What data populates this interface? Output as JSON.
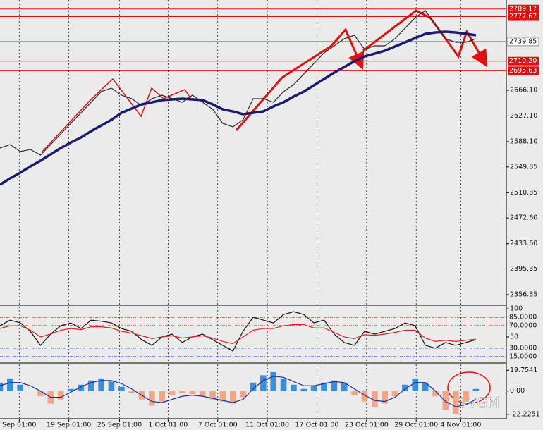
{
  "watermark": "TVGM",
  "chart_data": [
    {
      "type": "line",
      "xlim": [
        0,
        50
      ],
      "ylim": [
        2341.4,
        2802.8
      ],
      "yticks": [
        {
          "value": 2666.1,
          "label": "2666.10"
        },
        {
          "value": 2627.1,
          "label": "2627.10"
        },
        {
          "value": 2588.1,
          "label": "2588.10"
        },
        {
          "value": 2549.85,
          "label": "2549.85"
        },
        {
          "value": 2510.85,
          "label": "2510.85"
        },
        {
          "value": 2472.6,
          "label": "2472.60"
        },
        {
          "value": 2433.6,
          "label": "2433.60"
        },
        {
          "value": 2395.35,
          "label": "2395.35"
        },
        {
          "value": 2356.35,
          "label": "2356.35"
        }
      ],
      "levels": [
        {
          "value": 2789.17,
          "label": "2789.17",
          "color": "#e01010",
          "boxed": true
        },
        {
          "value": 2777.67,
          "label": "2777.67",
          "color": "#e01010",
          "boxed": true
        },
        {
          "value": 2739.85,
          "label": "2739.85",
          "color": "#4060c0",
          "boxed": false
        },
        {
          "value": 2710.2,
          "label": "2710.20",
          "color": "#e01010",
          "boxed": true
        },
        {
          "value": 2695.63,
          "label": "2695.63",
          "color": "#e01010",
          "boxed": true
        }
      ],
      "series": [
        {
          "color": "#2a2a2a",
          "values": [
            2578.5,
            2583.8,
            2573.2,
            2576.4,
            2567.8,
            2583.8,
            2599.9,
            2615.9,
            2631.9,
            2647.9,
            2664.0,
            2669.3,
            2658.6,
            2653.3,
            2642.6,
            2653.3,
            2658.6,
            2653.3,
            2647.9,
            2658.6,
            2647.9,
            2637.3,
            2615.9,
            2610.6,
            2621.2,
            2653.3,
            2653.3,
            2647.9,
            2664.0,
            2674.6,
            2690.7,
            2706.7,
            2722.7,
            2733.4,
            2744.1,
            2749.4,
            2728.0,
            2733.4,
            2733.4,
            2744.1,
            2760.1,
            2776.1,
            2786.8,
            2765.4,
            2744.1,
            2738.7,
            2738.7,
            2744.1
          ]
        },
        {
          "color": "#1c1c6e",
          "values": [
            2523.0,
            2532.6,
            2541.1,
            2550.7,
            2559.3,
            2568.9,
            2578.5,
            2587.0,
            2594.5,
            2604.1,
            2612.7,
            2621.2,
            2631.9,
            2638.3,
            2644.7,
            2647.9,
            2651.1,
            2652.2,
            2653.3,
            2652.2,
            2651.1,
            2644.7,
            2637.2,
            2634.0,
            2629.8,
            2631.9,
            2634.0,
            2641.5,
            2647.9,
            2656.5,
            2664.0,
            2673.6,
            2683.2,
            2692.8,
            2701.3,
            2709.9,
            2717.4,
            2721.6,
            2725.9,
            2732.3,
            2738.7,
            2745.1,
            2751.5,
            2753.7,
            2754.7,
            2753.7,
            2751.5,
            2749.4
          ]
        }
      ]
    },
    {
      "type": "line",
      "xlim": [
        0,
        50
      ],
      "ylim": [
        6,
        104
      ],
      "yticks": [
        100,
        50
      ],
      "levels": [
        {
          "value": 85,
          "label": "85.0000",
          "color": "#e01010",
          "boxed": false
        },
        {
          "value": 70,
          "label": "70.0000",
          "color": "#e01010",
          "boxed": false
        },
        {
          "value": 30,
          "label": "30.0000",
          "color": "#3050e0",
          "boxed": false
        },
        {
          "value": 15,
          "label": "15.0000",
          "color": "#3050e0",
          "boxed": false
        }
      ],
      "series": [
        {
          "color": "#111111",
          "values": [
            70,
            80,
            75,
            60,
            35,
            55,
            70,
            75,
            65,
            80,
            78,
            75,
            65,
            60,
            45,
            35,
            50,
            55,
            40,
            50,
            55,
            45,
            35,
            25,
            60,
            85,
            80,
            75,
            90,
            95,
            90,
            75,
            80,
            55,
            40,
            35,
            60,
            55,
            60,
            65,
            75,
            70,
            35,
            30,
            40,
            35,
            40,
            45
          ]
        },
        {
          "color": "#e02020",
          "values": [
            65,
            70,
            70,
            62,
            50,
            55,
            62,
            65,
            63,
            68,
            68,
            66,
            60,
            57,
            52,
            47,
            50,
            52,
            48,
            50,
            52,
            48,
            42,
            38,
            50,
            62,
            65,
            65,
            70,
            72,
            72,
            66,
            66,
            58,
            50,
            47,
            54,
            53,
            55,
            58,
            62,
            62,
            48,
            42,
            44,
            42,
            44,
            46
          ]
        }
      ]
    },
    {
      "type": "bar",
      "xlim": [
        0,
        50
      ],
      "ylim": [
        -25.7,
        25.3
      ],
      "yticks": [
        19.7541,
        {
          "value": 0,
          "label": "0.00"
        },
        -22.2251
      ],
      "color": "#3a8fd8",
      "negative_color": "#f4a583",
      "values": [
        8,
        12,
        6,
        0,
        -5,
        -12,
        -8,
        2,
        6,
        10,
        12,
        9,
        4,
        -2,
        -8,
        -14,
        -10,
        -4,
        -2,
        -3,
        -5,
        -8,
        -10,
        -12,
        -6,
        8,
        15,
        18,
        12,
        6,
        2,
        5,
        8,
        10,
        8,
        -4,
        -10,
        -15,
        -12,
        -5,
        6,
        12,
        8,
        -5,
        -18,
        -22,
        -10,
        2
      ],
      "series": [
        {
          "color": "#1c2ea0",
          "values": [
            5,
            8,
            8,
            5,
            0,
            -6,
            -6,
            -1,
            4,
            8,
            10,
            10,
            7,
            2,
            -4,
            -10,
            -11,
            -8,
            -5,
            -4,
            -5,
            -7,
            -9,
            -11,
            -8,
            2,
            10,
            14,
            13,
            9,
            5,
            5,
            7,
            9,
            8,
            2,
            -4,
            -9,
            -10,
            -6,
            2,
            8,
            8,
            0,
            -10,
            -15,
            -13,
            -8
          ]
        }
      ],
      "xticks": [
        {
          "value": 1.9,
          "label": "Sep 01:00"
        },
        {
          "value": 6.8,
          "label": "19 Sep 01:00"
        },
        {
          "value": 11.8,
          "label": "25 Sep 01:00"
        },
        {
          "value": 16.6,
          "label": "1 Oct 01:00"
        },
        {
          "value": 21.5,
          "label": "7 Oct 01:00"
        },
        {
          "value": 26.4,
          "label": "11 Oct 01:00"
        },
        {
          "value": 31.3,
          "label": "17 Oct 01:00"
        },
        {
          "value": 36.2,
          "label": "23 Oct 01:00"
        },
        {
          "value": 41.1,
          "label": "29 Oct 01:00"
        },
        {
          "value": 45.5,
          "label": "4 Nov 01:00"
        }
      ]
    }
  ]
}
